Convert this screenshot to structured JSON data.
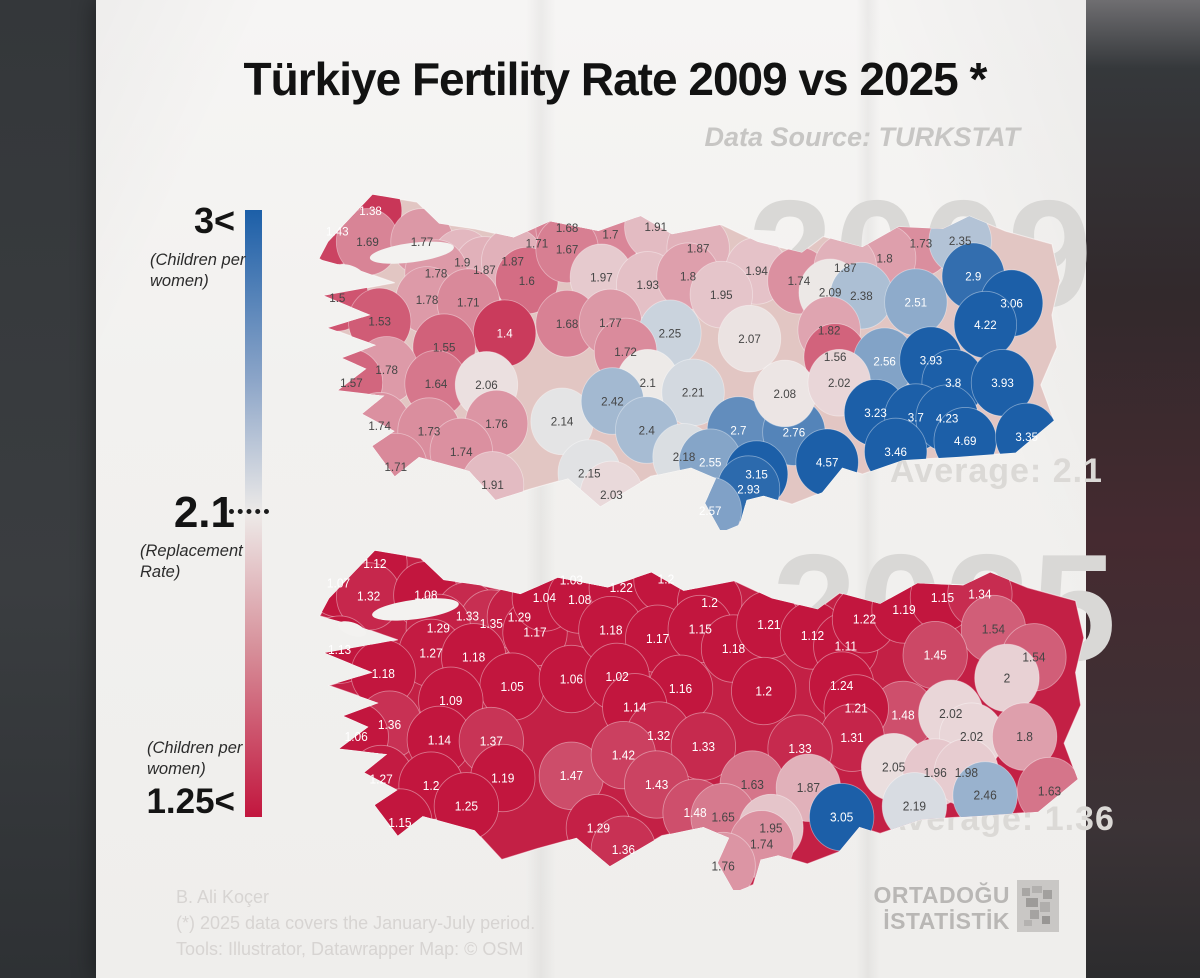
{
  "title": "Türkiye Fertility Rate 2009 vs 2025 *",
  "data_source": "Data Source: TURKSTAT",
  "legend": {
    "top_value": "3<",
    "top_caption": "(Children per women)",
    "mid_value": "2.1",
    "mid_caption": "(Replacement Rate)",
    "bottom_caption": "(Children per women)",
    "bottom_value": "1.25<",
    "colors": {
      "high": "#1c5fa8",
      "neutral": "#edeae8",
      "low": "#c2163e"
    }
  },
  "chart_data": {
    "type": "choropleth",
    "unit": "children per woman (total fertility rate by province)",
    "value_domain": [
      1.25,
      3
    ],
    "neutral_value": 2.1,
    "maps": [
      {
        "year": "2009",
        "watermark": "2009",
        "average_label": "Average: 2.1",
        "average": 2.1,
        "base_color": "#e2c6c3",
        "provinces": [
          [
            72,
            23,
            "1.38"
          ],
          [
            39,
            42,
            "1.43"
          ],
          [
            69,
            52,
            "1.69"
          ],
          [
            123,
            52,
            "1.77"
          ],
          [
            237,
            53,
            "1.71"
          ],
          [
            163,
            71,
            "1.9"
          ],
          [
            185,
            78,
            "1.87"
          ],
          [
            213,
            70,
            "1.87"
          ],
          [
            137,
            81,
            "1.78"
          ],
          [
            227,
            88,
            "1.6"
          ],
          [
            39,
            104,
            "1.5"
          ],
          [
            128,
            106,
            "1.78"
          ],
          [
            169,
            108,
            "1.71"
          ],
          [
            81,
            126,
            "1.53"
          ],
          [
            205,
            137,
            "1.4"
          ],
          [
            145,
            150,
            "1.55"
          ],
          [
            88,
            171,
            "1.78"
          ],
          [
            267,
            39,
            "1.68"
          ],
          [
            310,
            45,
            "1.7"
          ],
          [
            355,
            38,
            "1.91"
          ],
          [
            267,
            59,
            "1.67"
          ],
          [
            397,
            58,
            "1.87"
          ],
          [
            301,
            85,
            "1.97"
          ],
          [
            347,
            92,
            "1.93"
          ],
          [
            387,
            84,
            "1.8"
          ],
          [
            455,
            79,
            "1.94"
          ],
          [
            497,
            88,
            "1.74"
          ],
          [
            420,
            101,
            "1.95"
          ],
          [
            267,
            128,
            "1.68"
          ],
          [
            310,
            127,
            "1.77"
          ],
          [
            369,
            137,
            "2.25"
          ],
          [
            448,
            142,
            "2.07"
          ],
          [
            325,
            154,
            "1.72"
          ],
          [
            618,
            53,
            "1.73"
          ],
          [
            657,
            51,
            "2.35"
          ],
          [
            582,
            67,
            "1.8"
          ],
          [
            543,
            76,
            "1.87"
          ],
          [
            670,
            84,
            "2.9"
          ],
          [
            528,
            99,
            "2.09"
          ],
          [
            559,
            102,
            "2.38"
          ],
          [
            613,
            108,
            "2.51"
          ],
          [
            708,
            109,
            "3.06"
          ],
          [
            682,
            129,
            "4.22"
          ],
          [
            527,
            134,
            "1.82"
          ],
          [
            533,
            159,
            "1.56"
          ],
          [
            582,
            163,
            "2.56"
          ],
          [
            628,
            162,
            "3.93"
          ],
          [
            53,
            183,
            "1.57"
          ],
          [
            137,
            184,
            "1.64"
          ],
          [
            187,
            185,
            "2.06"
          ],
          [
            81,
            223,
            "1.74"
          ],
          [
            130,
            228,
            "1.73"
          ],
          [
            197,
            221,
            "1.76"
          ],
          [
            262,
            219,
            "2.14"
          ],
          [
            162,
            247,
            "1.74"
          ],
          [
            97,
            261,
            "1.71"
          ],
          [
            193,
            278,
            "1.91"
          ],
          [
            347,
            183,
            "2.1"
          ],
          [
            392,
            192,
            "2.21"
          ],
          [
            312,
            200,
            "2.42"
          ],
          [
            346,
            227,
            "2.4"
          ],
          [
            437,
            227,
            "2.7"
          ],
          [
            492,
            229,
            "2.76"
          ],
          [
            483,
            193,
            "2.08"
          ],
          [
            383,
            252,
            "2.18"
          ],
          [
            409,
            257,
            "2.55"
          ],
          [
            455,
            268,
            "3.15"
          ],
          [
            447,
            282,
            "2.93"
          ],
          [
            525,
            257,
            "4.57"
          ],
          [
            289,
            267,
            "2.15"
          ],
          [
            311,
            287,
            "2.03"
          ],
          [
            409,
            302,
            "2.57"
          ],
          [
            537,
            183,
            "2.02"
          ],
          [
            650,
            183,
            "3.8"
          ],
          [
            699,
            183,
            "3.93"
          ],
          [
            573,
            211,
            "3.23"
          ],
          [
            613,
            215,
            "3.7"
          ],
          [
            644,
            216,
            "4.23"
          ],
          [
            662,
            237,
            "4.69"
          ],
          [
            723,
            233,
            "3.35"
          ],
          [
            593,
            247,
            "3.46"
          ]
        ]
      },
      {
        "year": "2025",
        "watermark": "2025",
        "average_label": "Average: 1.36",
        "average": 1.36,
        "base_color": "#c32045",
        "provinces": [
          [
            74,
            20,
            "1.12"
          ],
          [
            39,
            38,
            "1.07"
          ],
          [
            68,
            50,
            "1.32"
          ],
          [
            123,
            49,
            "1.08"
          ],
          [
            163,
            68,
            "1.33"
          ],
          [
            186,
            75,
            "1.35"
          ],
          [
            135,
            79,
            "1.29"
          ],
          [
            213,
            69,
            "1.29"
          ],
          [
            228,
            83,
            "1.17"
          ],
          [
            263,
            35,
            "1.03"
          ],
          [
            237,
            51,
            "1.04"
          ],
          [
            271,
            53,
            "1.08"
          ],
          [
            40,
            99,
            "1.13"
          ],
          [
            128,
            102,
            "1.27"
          ],
          [
            169,
            106,
            "1.18"
          ],
          [
            82,
            121,
            "1.18"
          ],
          [
            206,
            133,
            "1.05"
          ],
          [
            147,
            146,
            "1.09"
          ],
          [
            263,
            126,
            "1.06"
          ],
          [
            88,
            168,
            "1.36"
          ],
          [
            56,
            179,
            "1.06"
          ],
          [
            311,
            42,
            "1.22"
          ],
          [
            354,
            34,
            "1.2"
          ],
          [
            396,
            56,
            "1.2"
          ],
          [
            301,
            81,
            "1.18"
          ],
          [
            346,
            89,
            "1.17"
          ],
          [
            387,
            80,
            "1.15"
          ],
          [
            419,
            98,
            "1.18"
          ],
          [
            453,
            76,
            "1.21"
          ],
          [
            495,
            86,
            "1.12"
          ],
          [
            527,
            96,
            "1.11"
          ],
          [
            307,
            124,
            "1.02"
          ],
          [
            368,
            135,
            "1.16"
          ],
          [
            448,
            137,
            "1.2"
          ],
          [
            523,
            132,
            "1.24"
          ],
          [
            324,
            152,
            "1.14"
          ],
          [
            545,
            71,
            "1.22"
          ],
          [
            583,
            62,
            "1.19"
          ],
          [
            620,
            51,
            "1.15"
          ],
          [
            656,
            48,
            "1.34"
          ],
          [
            669,
            80,
            "1.54"
          ],
          [
            613,
            104,
            "1.45"
          ],
          [
            708,
            106,
            "1.54"
          ],
          [
            682,
            125,
            "2"
          ],
          [
            582,
            159,
            "1.48"
          ],
          [
            628,
            158,
            "2.02"
          ],
          [
            537,
            153,
            "1.21"
          ],
          [
            533,
            180,
            "1.31"
          ],
          [
            136,
            182,
            "1.14"
          ],
          [
            186,
            183,
            "1.37"
          ],
          [
            80,
            218,
            "1.27"
          ],
          [
            128,
            224,
            "1.2"
          ],
          [
            197,
            217,
            "1.19"
          ],
          [
            263,
            215,
            "1.47"
          ],
          [
            162,
            243,
            "1.25"
          ],
          [
            98,
            258,
            "1.15"
          ],
          [
            347,
            178,
            "1.32"
          ],
          [
            313,
            196,
            "1.42"
          ],
          [
            390,
            188,
            "1.33"
          ],
          [
            483,
            190,
            "1.33"
          ],
          [
            345,
            223,
            "1.43"
          ],
          [
            437,
            223,
            "1.63"
          ],
          [
            491,
            226,
            "1.87"
          ],
          [
            382,
            249,
            "1.48"
          ],
          [
            409,
            253,
            "1.65"
          ],
          [
            523,
            253,
            "3.05"
          ],
          [
            289,
            263,
            "1.29"
          ],
          [
            455,
            263,
            "1.95"
          ],
          [
            446,
            278,
            "1.74"
          ],
          [
            313,
            283,
            "1.36"
          ],
          [
            409,
            298,
            "1.76"
          ],
          [
            648,
            179,
            "2.02"
          ],
          [
            699,
            179,
            "1.8"
          ],
          [
            573,
            207,
            "2.05"
          ],
          [
            613,
            212,
            "1.96"
          ],
          [
            643,
            212,
            "1.98"
          ],
          [
            661,
            233,
            "2.46"
          ],
          [
            723,
            229,
            "1.63"
          ],
          [
            593,
            243,
            "2.19"
          ]
        ]
      }
    ]
  },
  "footer": {
    "line1": "B. Ali Koçer",
    "line2": "(*) 2025 data covers the January-July period.",
    "line3": "Tools: Illustrator, Datawrapper Map: © OSM"
  },
  "logo": {
    "line1": "ORTADOĞU",
    "line2": "İSTATİSTİK"
  }
}
